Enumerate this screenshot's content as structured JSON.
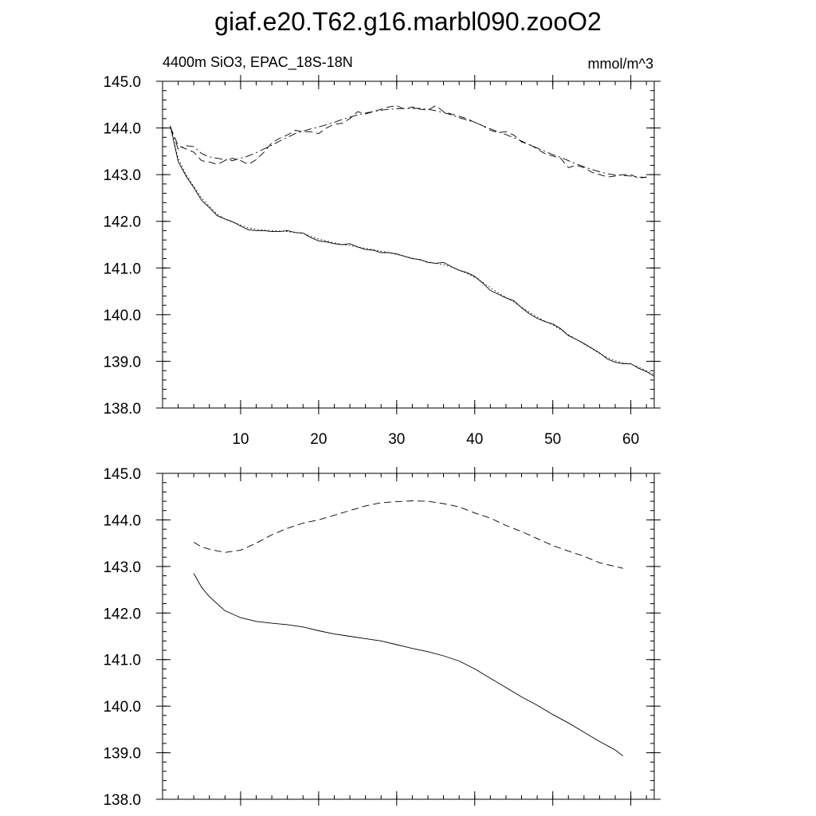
{
  "chart_data": {
    "title": "giaf.e20.T62.g16.marbl090.zooO2",
    "left_string": "4400m SiO3, EPAC_18S-18N",
    "right_string": "mmol/m^3",
    "panels": [
      {
        "type": "line",
        "ylim": [
          138.0,
          145.0
        ],
        "xlim": [
          0,
          63
        ],
        "x_ticks": [
          10,
          20,
          30,
          40,
          50,
          60
        ],
        "x_tick_labels": [
          "10",
          "20",
          "30",
          "40",
          "50",
          "60"
        ],
        "y_ticks": [
          138.0,
          139.0,
          140.0,
          141.0,
          142.0,
          143.0,
          144.0,
          145.0
        ],
        "y_tick_labels": [
          "138.0",
          "139.0",
          "140.0",
          "141.0",
          "142.0",
          "143.0",
          "144.0",
          "145.0"
        ],
        "series": [
          {
            "style": "solid",
            "x": [
              1,
              2,
              3,
              4,
              5,
              6,
              7,
              8,
              9,
              10,
              11,
              12,
              13,
              14,
              15,
              16,
              17,
              18,
              19,
              20,
              21,
              22,
              23,
              24,
              25,
              26,
              27,
              28,
              29,
              30,
              31,
              32,
              33,
              34,
              35,
              36,
              37,
              38,
              39,
              40,
              41,
              42,
              43,
              44,
              45,
              46,
              47,
              48,
              49,
              50,
              51,
              52,
              53,
              54,
              55,
              56,
              57,
              58,
              59,
              60,
              61,
              62,
              63
            ],
            "y": [
              144.05,
              143.28,
              142.97,
              142.72,
              142.45,
              142.29,
              142.12,
              142.05,
              141.99,
              141.9,
              141.82,
              141.8,
              141.8,
              141.78,
              141.78,
              141.8,
              141.76,
              141.75,
              141.65,
              141.58,
              141.56,
              141.52,
              141.5,
              141.52,
              141.45,
              141.4,
              141.38,
              141.33,
              141.33,
              141.3,
              141.25,
              141.2,
              141.18,
              141.12,
              141.1,
              141.12,
              141.03,
              140.95,
              140.9,
              140.82,
              140.68,
              140.52,
              140.44,
              140.36,
              140.3,
              140.15,
              140.02,
              139.92,
              139.85,
              139.8,
              139.7,
              139.55,
              139.47,
              139.38,
              139.28,
              139.18,
              139.05,
              138.98,
              138.95,
              138.95,
              138.85,
              138.78,
              138.68
            ]
          },
          {
            "style": "dotted",
            "x": [
              1,
              2,
              3,
              4,
              5,
              6,
              7,
              8,
              9,
              10,
              11,
              12,
              13,
              14,
              15,
              16,
              17,
              18,
              19,
              20,
              21,
              22,
              23,
              24,
              25,
              26,
              27,
              28,
              29,
              30,
              31,
              32,
              33,
              34,
              35,
              36,
              37,
              38,
              39,
              40,
              41,
              42,
              43,
              44,
              45,
              46,
              47,
              48,
              49,
              50,
              51,
              52,
              53,
              54,
              55,
              56,
              57,
              58,
              59,
              60,
              61,
              62,
              63
            ],
            "y": [
              144.0,
              143.35,
              143.0,
              142.75,
              142.5,
              142.32,
              142.15,
              142.05,
              141.98,
              141.92,
              141.86,
              141.83,
              141.81,
              141.8,
              141.79,
              141.78,
              141.76,
              141.74,
              141.68,
              141.62,
              141.58,
              141.54,
              141.5,
              141.48,
              141.45,
              141.42,
              141.39,
              141.36,
              141.33,
              141.29,
              141.25,
              141.21,
              141.17,
              141.13,
              141.1,
              141.07,
              141.02,
              140.95,
              140.88,
              140.8,
              140.7,
              140.58,
              140.47,
              140.37,
              140.27,
              140.16,
              140.05,
              139.95,
              139.86,
              139.78,
              139.68,
              139.57,
              139.47,
              139.37,
              139.27,
              139.17,
              139.08,
              139.01,
              138.97,
              138.94,
              138.88,
              138.8,
              138.72
            ]
          },
          {
            "style": "dashed",
            "x": [
              1,
              2,
              3,
              4,
              5,
              6,
              7,
              8,
              9,
              10,
              11,
              12,
              13,
              14,
              15,
              16,
              17,
              18,
              19,
              20,
              21,
              22,
              23,
              24,
              25,
              26,
              27,
              28,
              29,
              30,
              31,
              32,
              33,
              34,
              35,
              36,
              37,
              38,
              39,
              40,
              41,
              42,
              43,
              44,
              45,
              46,
              47,
              48,
              49,
              50,
              51,
              52,
              53,
              54,
              55,
              56,
              57,
              58,
              59,
              60,
              61,
              62
            ],
            "y": [
              144.02,
              143.62,
              143.55,
              143.48,
              143.3,
              143.27,
              143.22,
              143.3,
              143.35,
              143.3,
              143.22,
              143.32,
              143.48,
              143.68,
              143.78,
              143.85,
              143.95,
              143.92,
              143.92,
              143.88,
              144.0,
              144.08,
              144.1,
              144.2,
              144.35,
              144.3,
              144.35,
              144.4,
              144.45,
              144.48,
              144.4,
              144.45,
              144.4,
              144.38,
              144.48,
              144.35,
              144.3,
              144.25,
              144.2,
              144.12,
              144.05,
              143.95,
              143.9,
              143.92,
              143.85,
              143.7,
              143.65,
              143.55,
              143.45,
              143.4,
              143.35,
              143.15,
              143.2,
              143.15,
              143.05,
              143.0,
              142.95,
              142.97,
              143.0,
              143.0,
              142.92,
              142.95
            ]
          },
          {
            "style": "dashdot",
            "x": [
              1,
              2,
              3,
              4,
              5,
              6,
              7,
              8,
              9,
              10,
              11,
              12,
              13,
              14,
              15,
              16,
              17,
              18,
              19,
              20,
              21,
              22,
              23,
              24,
              25,
              26,
              27,
              28,
              29,
              30,
              31,
              32,
              33,
              34,
              35,
              36,
              37,
              38,
              39,
              40,
              41,
              42,
              43,
              44,
              45,
              46,
              47,
              48,
              49,
              50,
              51,
              52,
              53,
              54,
              55,
              56,
              57,
              58,
              59,
              60,
              61,
              62
            ],
            "y": [
              144.02,
              143.55,
              143.62,
              143.6,
              143.45,
              143.38,
              143.35,
              143.32,
              143.3,
              143.35,
              143.4,
              143.47,
              143.55,
              143.63,
              143.72,
              143.8,
              143.88,
              143.93,
              143.98,
              144.02,
              144.07,
              144.12,
              144.18,
              144.23,
              144.28,
              144.32,
              144.35,
              144.38,
              144.4,
              144.41,
              144.42,
              144.42,
              144.42,
              144.4,
              144.37,
              144.33,
              144.28,
              144.22,
              144.17,
              144.12,
              144.05,
              143.98,
              143.92,
              143.86,
              143.79,
              143.72,
              143.64,
              143.57,
              143.5,
              143.43,
              143.37,
              143.3,
              143.23,
              143.17,
              143.11,
              143.06,
              143.02,
              142.99,
              142.98,
              142.97,
              142.95,
              142.94
            ]
          }
        ]
      },
      {
        "type": "line",
        "ylim": [
          138.0,
          145.0
        ],
        "xlim": [
          0,
          63
        ],
        "x_ticks": [
          10,
          20,
          30,
          40,
          50,
          60
        ],
        "y_ticks": [
          138.0,
          139.0,
          140.0,
          141.0,
          142.0,
          143.0,
          144.0,
          145.0
        ],
        "y_tick_labels": [
          "138.0",
          "139.0",
          "140.0",
          "141.0",
          "142.0",
          "143.0",
          "144.0",
          "145.0"
        ],
        "series": [
          {
            "style": "solid",
            "x": [
              4,
              5,
              6,
              8,
              10,
              12,
              14,
              16,
              18,
              20,
              22,
              24,
              26,
              28,
              30,
              32,
              34,
              36,
              38,
              40,
              42,
              44,
              46,
              48,
              50,
              52,
              54,
              56,
              58,
              59
            ],
            "y": [
              142.85,
              142.55,
              142.35,
              142.05,
              141.9,
              141.82,
              141.78,
              141.75,
              141.7,
              141.62,
              141.55,
              141.5,
              141.45,
              141.4,
              141.32,
              141.24,
              141.17,
              141.08,
              140.97,
              140.8,
              140.6,
              140.4,
              140.2,
              140.02,
              139.82,
              139.64,
              139.44,
              139.24,
              139.06,
              138.93
            ]
          },
          {
            "style": "dashed",
            "x": [
              4,
              5,
              6,
              8,
              10,
              12,
              14,
              16,
              18,
              20,
              22,
              24,
              26,
              28,
              30,
              32,
              34,
              36,
              38,
              40,
              42,
              44,
              46,
              48,
              50,
              52,
              54,
              56,
              58,
              59
            ],
            "y": [
              143.52,
              143.42,
              143.37,
              143.3,
              143.35,
              143.5,
              143.68,
              143.82,
              143.93,
              144.0,
              144.1,
              144.2,
              144.3,
              144.37,
              144.39,
              144.41,
              144.4,
              144.35,
              144.28,
              144.15,
              144.04,
              143.88,
              143.75,
              143.6,
              143.45,
              143.33,
              143.22,
              143.08,
              143.0,
              142.96
            ]
          }
        ]
      }
    ]
  }
}
